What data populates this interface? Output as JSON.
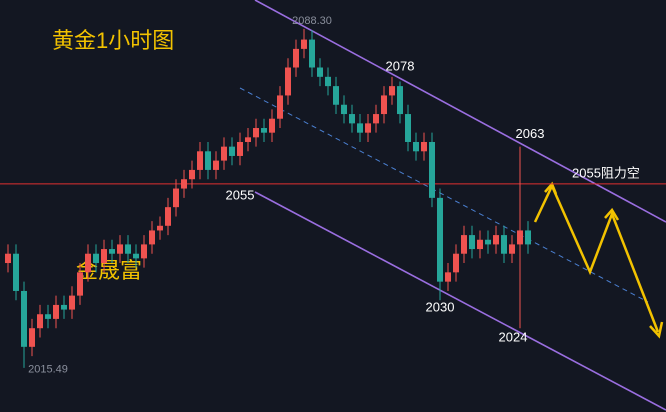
{
  "chart_data": {
    "type": "candlestick",
    "title": "黄金1小时图",
    "watermark": "金晟富",
    "ylim": [
      2006,
      2094.5
    ],
    "up_color": "#ef5350",
    "down_color": "#26a69a",
    "series": [
      {
        "open": [
          2038,
          2040,
          2032,
          2020,
          2024,
          2027,
          2026,
          2029,
          2028,
          2031,
          2036,
          2040,
          2038,
          2041,
          2040,
          2042,
          2040,
          2039,
          2042,
          2045,
          2046,
          2050,
          2054,
          2056,
          2058,
          2062,
          2058,
          2060,
          2063,
          2061,
          2064,
          2065,
          2067,
          2066,
          2069,
          2074,
          2080,
          2084,
          2086,
          2080,
          2078,
          2076,
          2072,
          2070,
          2068,
          2066,
          2068,
          2070,
          2074,
          2076,
          2070,
          2064,
          2062,
          2064,
          2052,
          2034,
          2036,
          2040,
          2044,
          2041,
          2043,
          2042,
          2044,
          2040,
          2042,
          2045
        ],
        "high": [
          2042,
          2042,
          2034,
          2026,
          2029,
          2029,
          2031,
          2031,
          2033,
          2038,
          2042,
          2042,
          2043,
          2043,
          2044,
          2044,
          2042,
          2044,
          2047,
          2048,
          2052,
          2056,
          2058,
          2060,
          2064,
          2064,
          2062,
          2065,
          2065,
          2066,
          2067,
          2069,
          2069,
          2071,
          2076,
          2082,
          2086,
          2088.3,
          2088,
          2082,
          2080,
          2078,
          2074,
          2072,
          2070,
          2070,
          2072,
          2076,
          2078,
          2077,
          2072,
          2066,
          2066,
          2066,
          2054,
          2038,
          2042,
          2046,
          2046,
          2045,
          2045,
          2046,
          2046,
          2044,
          2063,
          2047
        ],
        "low": [
          2036,
          2030,
          2015.49,
          2018,
          2022,
          2024,
          2024,
          2026,
          2026,
          2029,
          2034,
          2036,
          2036,
          2038,
          2038,
          2038,
          2037,
          2037,
          2040,
          2043,
          2044,
          2048,
          2052,
          2054,
          2056,
          2056,
          2056,
          2058,
          2059,
          2059,
          2062,
          2063,
          2064,
          2064,
          2067,
          2072,
          2078,
          2082,
          2078,
          2076,
          2074,
          2070,
          2068,
          2066,
          2064,
          2064,
          2066,
          2068,
          2072,
          2068,
          2062,
          2060,
          2060,
          2050,
          2030,
          2032,
          2034,
          2038,
          2039,
          2039,
          2040,
          2040,
          2038,
          2038,
          2024,
          2040
        ],
        "close": [
          2040,
          2032,
          2020,
          2024,
          2027,
          2026,
          2029,
          2028,
          2031,
          2036,
          2040,
          2038,
          2041,
          2040,
          2042,
          2040,
          2039,
          2042,
          2045,
          2046,
          2050,
          2054,
          2056,
          2058,
          2062,
          2058,
          2060,
          2063,
          2061,
          2064,
          2065,
          2067,
          2066,
          2069,
          2074,
          2080,
          2084,
          2086,
          2080,
          2078,
          2076,
          2072,
          2070,
          2068,
          2066,
          2068,
          2070,
          2074,
          2076,
          2070,
          2064,
          2062,
          2064,
          2052,
          2034,
          2036,
          2040,
          2044,
          2041,
          2043,
          2042,
          2044,
          2040,
          2042,
          2045,
          2042
        ]
      }
    ],
    "hline": {
      "value": 2055,
      "label": "2055阻力空",
      "color": "#e03030"
    },
    "price_labels": [
      {
        "value": 2088.3,
        "label": "2088.30"
      },
      2078,
      2063,
      2055,
      2030,
      2024,
      {
        "value": 2015.49,
        "label": "2015.49"
      }
    ]
  }
}
